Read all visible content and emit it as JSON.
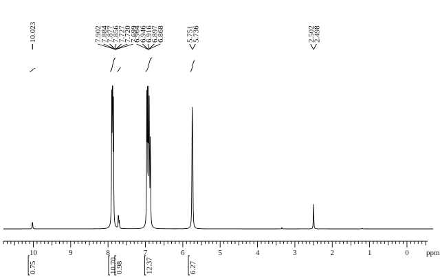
{
  "chart_data": {
    "type": "line",
    "title": "",
    "xlabel": "ppm",
    "ylabel": "",
    "xlim": [
      10.8,
      -0.7
    ],
    "x_reversed": true,
    "x_ticks": [
      {
        "value": 10,
        "label": "10"
      },
      {
        "value": 9,
        "label": "9"
      },
      {
        "value": 8,
        "label": "8"
      },
      {
        "value": 7,
        "label": "7"
      },
      {
        "value": 6,
        "label": "6"
      },
      {
        "value": 5,
        "label": "5"
      },
      {
        "value": 4,
        "label": "4"
      },
      {
        "value": 3,
        "label": "3"
      },
      {
        "value": 2,
        "label": "2"
      },
      {
        "value": 1,
        "label": "1"
      },
      {
        "value": 0,
        "label": "0"
      }
    ],
    "grid": false,
    "peaks": [
      {
        "shift": 10.023,
        "height": 0.07
      },
      {
        "shift": 7.902,
        "height": 0.82
      },
      {
        "shift": 7.884,
        "height": 0.9
      },
      {
        "shift": 7.877,
        "height": 0.95
      },
      {
        "shift": 7.856,
        "height": 0.8
      },
      {
        "shift": 7.727,
        "height": 0.06
      },
      {
        "shift": 7.72,
        "height": 0.07
      },
      {
        "shift": 7.699,
        "height": 0.05
      },
      {
        "shift": 6.964,
        "height": 0.85
      },
      {
        "shift": 6.946,
        "height": 0.98
      },
      {
        "shift": 6.916,
        "height": 0.93
      },
      {
        "shift": 6.897,
        "height": 0.88
      },
      {
        "shift": 6.868,
        "height": 0.78
      },
      {
        "shift": 5.751,
        "height": 0.78
      },
      {
        "shift": 5.736,
        "height": 0.8
      },
      {
        "shift": 3.35,
        "height": 0.01
      },
      {
        "shift": 2.502,
        "height": 0.1
      },
      {
        "shift": 2.498,
        "height": 0.1
      },
      {
        "shift": 1.2,
        "height": 0.006
      }
    ],
    "peak_labels": [
      {
        "shift": 10.023,
        "labels": [
          "10.023"
        ]
      },
      {
        "shift": 7.8,
        "labels": [
          "7.902",
          "7.884",
          "7.877",
          "7.856",
          "7.727",
          "7.720",
          "7.699"
        ]
      },
      {
        "shift": 6.92,
        "labels": [
          "6.964",
          "6.946",
          "6.916",
          "6.897",
          "6.868"
        ]
      },
      {
        "shift": 5.74,
        "labels": [
          "5.751",
          "5.736"
        ]
      },
      {
        "shift": 2.5,
        "labels": [
          "2.502",
          "2.498"
        ]
      }
    ],
    "integrals": [
      {
        "from": 10.1,
        "to": 9.95,
        "value": "0.75"
      },
      {
        "from": 7.95,
        "to": 7.8,
        "value": "10.70"
      },
      {
        "from": 7.76,
        "to": 7.66,
        "value": "0.98"
      },
      {
        "from": 7.0,
        "to": 6.82,
        "value": "12.37"
      },
      {
        "from": 5.8,
        "to": 5.68,
        "value": "6.27"
      }
    ]
  }
}
